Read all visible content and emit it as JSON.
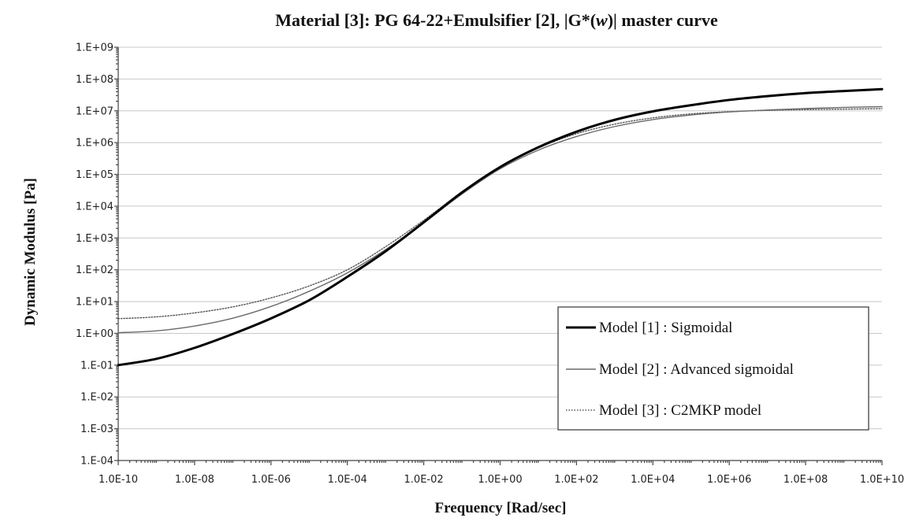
{
  "chart_data": {
    "type": "line",
    "title_parts": {
      "prefix": "Material [3]: PG 64-22+Emulsifier [2], |G*(",
      "symbol": "w",
      "suffix": ")| master curve"
    },
    "xlabel": "Frequency [Rad/sec]",
    "ylabel": "Dynamic Modulus [Pa]",
    "x_scale": "log",
    "y_scale": "log",
    "xlim": [
      1e-10,
      10000000000.0
    ],
    "ylim": [
      0.0001,
      1000000000.0
    ],
    "x_tick_labels": [
      "1.0E-10",
      "1.0E-08",
      "1.0E-06",
      "1.0E-04",
      "1.0E-02",
      "1.0E+00",
      "1.0E+02",
      "1.0E+04",
      "1.0E+06",
      "1.0E+08",
      "1.0E+10"
    ],
    "y_tick_labels": [
      "1.E-04",
      "1.E-03",
      "1.E-02",
      "1.E-01",
      "1.E+00",
      "1.E+01",
      "1.E+02",
      "1.E+03",
      "1.E+04",
      "1.E+05",
      "1.E+06",
      "1.E+07",
      "1.E+08",
      "1.E+09"
    ],
    "grid": "horizontal",
    "legend_position": "bottom-right",
    "series": [
      {
        "name": "Model [1] : Sigmoidal",
        "style": "solid-thick",
        "color": "#000000",
        "x": [
          1e-10,
          1e-09,
          1e-08,
          1e-07,
          1e-06,
          1e-05,
          0.0001,
          0.001,
          0.01,
          0.1,
          1.0,
          10.0,
          100.0,
          1000.0,
          10000.0,
          100000.0,
          1000000.0,
          10000000.0,
          100000000.0,
          1000000000.0,
          10000000000.0
        ],
        "y": [
          0.1,
          0.158,
          0.35,
          0.955,
          2.95,
          11,
          60,
          380,
          3100,
          27000,
          170000,
          710000,
          2200000,
          5200000,
          9600000,
          15000000,
          22000000,
          29000000,
          36000000,
          42000000,
          48000000
        ]
      },
      {
        "name": "Model [2] : Advanced sigmoidal",
        "style": "solid-thin",
        "color": "#6a6a6a",
        "x": [
          1e-10,
          1e-09,
          1e-08,
          1e-07,
          1e-06,
          1e-05,
          0.0001,
          0.001,
          0.01,
          0.1,
          1.0,
          10.0,
          100.0,
          1000.0,
          10000.0,
          100000.0,
          1000000.0,
          10000000.0,
          100000000.0,
          1000000000.0,
          10000000000.0
        ],
        "y": [
          1.05,
          1.2,
          1.7,
          3.0,
          7.0,
          21,
          80,
          430,
          3000,
          24000,
          150000,
          580000,
          1550000,
          3200000,
          5300000,
          7400000,
          9200000,
          10600000,
          11800000,
          12800000,
          13500000
        ]
      },
      {
        "name": "Model [3] : C2MKP model",
        "style": "dotted",
        "color": "#555555",
        "x": [
          1e-10,
          1e-09,
          1e-08,
          1e-07,
          1e-06,
          1e-05,
          0.0001,
          0.001,
          0.01,
          0.1,
          1.0,
          10.0,
          100.0,
          1000.0,
          10000.0,
          100000.0,
          1000000.0,
          10000000.0,
          100000000.0,
          1000000000.0,
          10000000000.0
        ],
        "y": [
          2.9,
          3.3,
          4.4,
          6.8,
          13,
          31,
          100,
          530,
          3600,
          28000,
          170000,
          680000,
          1900000,
          3800000,
          6000000,
          8000000,
          9400000,
          10300000,
          10900000,
          11300000,
          11700000
        ]
      }
    ]
  }
}
